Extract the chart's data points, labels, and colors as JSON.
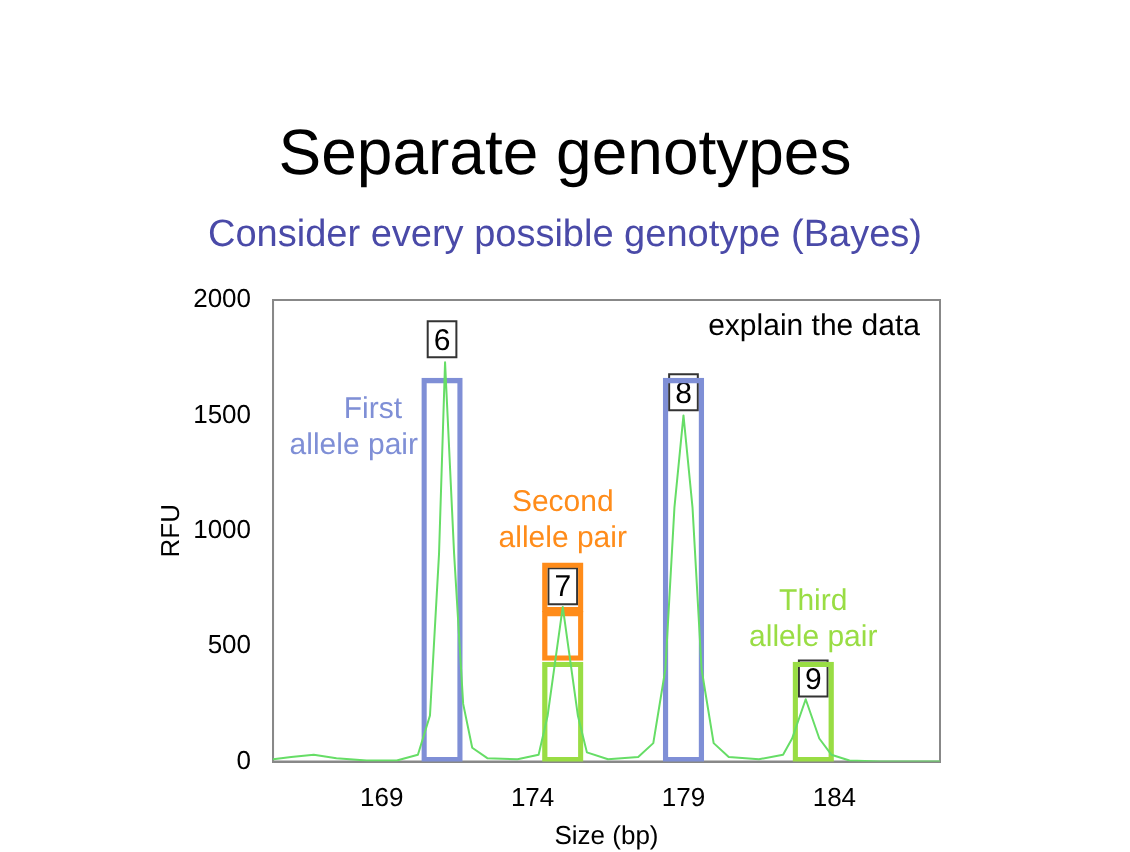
{
  "chart_data": {
    "type": "line",
    "title": "Separate genotypes",
    "subtitle": "Consider every possible genotype (Bayes)",
    "xlabel": "Size (bp)",
    "ylabel": "RFU",
    "xlim": [
      165.4,
      187.5
    ],
    "xticks": [
      169,
      174,
      179,
      184
    ],
    "ylim": [
      0,
      2000
    ],
    "yticks": [
      0,
      500,
      1000,
      1500,
      2000
    ],
    "grid": false,
    "legend": false,
    "marker": "none",
    "series": [
      {
        "color": "#66dd66",
        "x": [
          165.4,
          166.0,
          166.75,
          167.5,
          168.5,
          169.5,
          170.2,
          170.6,
          170.9,
          171.1,
          171.4,
          171.7,
          172.0,
          172.5,
          173.5,
          174.2,
          174.5,
          175.0,
          175.5,
          175.8,
          176.5,
          177.5,
          178.0,
          178.4,
          178.7,
          179.0,
          179.3,
          179.6,
          180.0,
          180.5,
          181.5,
          182.3,
          182.6,
          183.05,
          183.5,
          183.9,
          184.5,
          185.5,
          187.5
        ],
        "values": [
          10,
          20,
          30,
          15,
          5,
          5,
          30,
          200,
          900,
          1730,
          900,
          250,
          60,
          15,
          10,
          30,
          200,
          670,
          200,
          40,
          10,
          20,
          80,
          400,
          1100,
          1500,
          1100,
          400,
          80,
          20,
          10,
          30,
          100,
          270,
          100,
          30,
          5,
          0,
          0
        ]
      },
      {
        "type": "bar",
        "name": "First allele pair",
        "color": "#7f8fd6",
        "x": [
          171.0,
          179.0
        ],
        "base": [
          0,
          0
        ],
        "values": [
          1660,
          1660
        ]
      },
      {
        "type": "bar",
        "name": "Second allele pair",
        "color": "#ff8c1a",
        "x": [
          175.0,
          175.0
        ],
        "base": [
          440,
          650
        ],
        "values": [
          210,
          210
        ]
      },
      {
        "type": "bar",
        "name": "Third allele pair",
        "color": "#99dd44",
        "x": [
          175.0,
          183.3
        ],
        "base": [
          0,
          0
        ],
        "values": [
          430,
          430
        ]
      }
    ],
    "annotations": [
      "explain the data",
      {
        "text": "6",
        "x": 171.0,
        "y": 1830
      },
      {
        "text": "7",
        "x": 175.0,
        "y": 760
      },
      {
        "text": "8",
        "x": 179.0,
        "y": 1600
      },
      {
        "text": "9",
        "x": 183.3,
        "y": 360
      }
    ]
  }
}
